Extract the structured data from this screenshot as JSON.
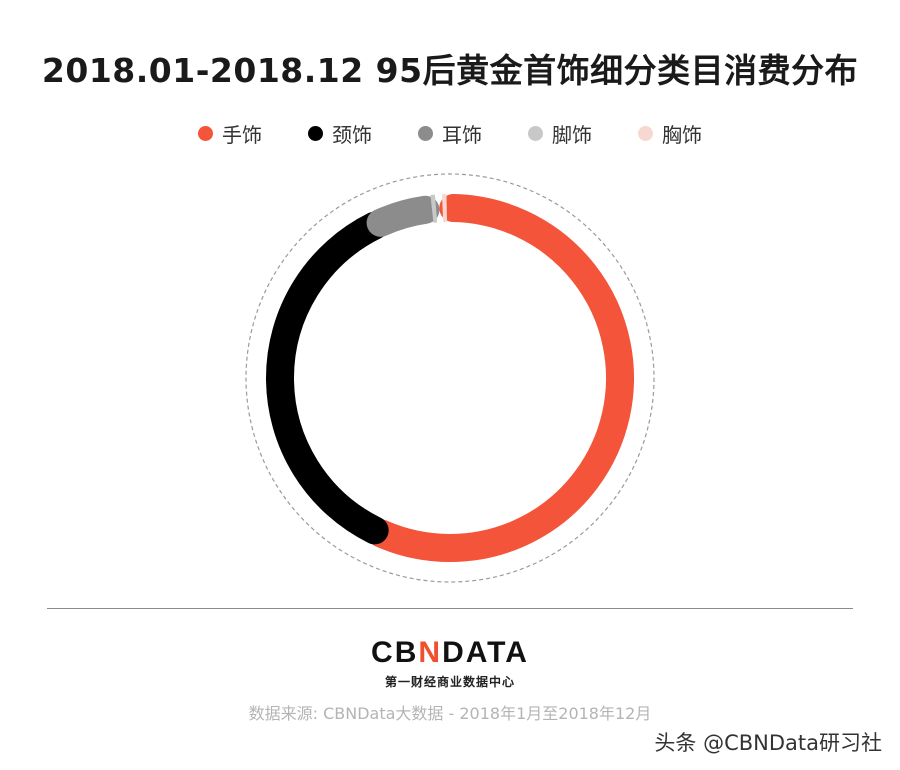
{
  "chart_data": {
    "type": "pie",
    "title": "2018.01-2018.12 95后黄金首饰细分类目消费分布",
    "legend_placement": "top",
    "slices": [
      {
        "name": "手饰",
        "value": 57.0,
        "color": "#f4543a"
      },
      {
        "name": "颈饰",
        "value": 36.0,
        "color": "#000000"
      },
      {
        "name": "耳饰",
        "value": 5.0,
        "color": "#8c8c8c"
      },
      {
        "name": "脚饰",
        "value": 1.0,
        "color": "#c8c8c8"
      },
      {
        "name": "胸饰",
        "value": 1.0,
        "color": "#f7d8d0"
      }
    ]
  },
  "footer": {
    "logo_part1": "CB",
    "logo_part2": "N",
    "logo_part3": "DATA",
    "logo_subtitle": "第一财经商业数据中心",
    "source": "数据来源: CBNData大数据 - 2018年1月至2018年12月",
    "watermark": "头条 @CBNData研习社"
  }
}
